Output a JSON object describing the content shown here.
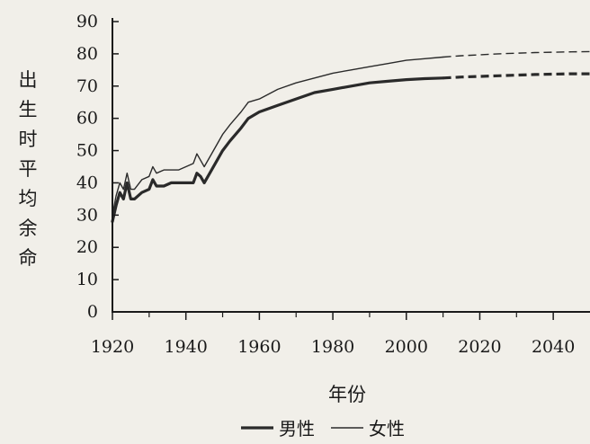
{
  "chart_data": {
    "type": "line",
    "xlabel": "年份",
    "ylabel": "出生时平均余命",
    "xlim": [
      1920,
      2050
    ],
    "ylim": [
      0,
      90
    ],
    "x_ticks": [
      1920,
      1940,
      1960,
      1980,
      2000,
      2020,
      2040
    ],
    "y_ticks": [
      0,
      10,
      20,
      30,
      40,
      50,
      60,
      70,
      80,
      90
    ],
    "grid": false,
    "legend_position": "bottom-center",
    "observed_until": 2010,
    "projected_style": "dashed",
    "series": [
      {
        "name": "男性",
        "color": "#2a2a2a",
        "line_weight": "bold",
        "x": [
          1920,
          1921,
          1922,
          1923,
          1924,
          1925,
          1926,
          1928,
          1930,
          1931,
          1932,
          1934,
          1936,
          1938,
          1940,
          1942,
          1943,
          1944,
          1945,
          1947,
          1950,
          1952,
          1955,
          1957,
          1960,
          1965,
          1970,
          1975,
          1980,
          1985,
          1990,
          1995,
          2000,
          2005,
          2010,
          2015,
          2020,
          2025,
          2030,
          2035,
          2040,
          2045,
          2050
        ],
        "values": [
          28,
          33,
          37,
          35,
          40,
          35,
          35,
          37,
          38,
          41,
          39,
          39,
          40,
          40,
          40,
          40,
          43,
          42,
          40,
          44,
          50,
          53,
          57,
          60,
          62,
          64,
          66,
          68,
          69,
          70,
          71,
          71.5,
          72,
          72.3,
          72.5,
          72.8,
          73.0,
          73.2,
          73.4,
          73.6,
          73.7,
          73.8,
          73.8
        ]
      },
      {
        "name": "女性",
        "color": "#2a2a2a",
        "line_weight": "thin",
        "x": [
          1920,
          1921,
          1922,
          1923,
          1924,
          1925,
          1926,
          1928,
          1930,
          1931,
          1932,
          1934,
          1936,
          1938,
          1940,
          1942,
          1943,
          1944,
          1945,
          1947,
          1950,
          1952,
          1955,
          1957,
          1960,
          1965,
          1970,
          1975,
          1980,
          1985,
          1990,
          1995,
          2000,
          2005,
          2010,
          2015,
          2020,
          2025,
          2030,
          2035,
          2040,
          2045,
          2050
        ],
        "values": [
          30,
          36,
          40,
          38,
          43,
          38,
          38,
          41,
          42,
          45,
          43,
          44,
          44,
          44,
          45,
          46,
          49,
          47,
          45,
          49,
          55,
          58,
          62,
          65,
          66,
          69,
          71,
          72.5,
          74,
          75,
          76,
          77,
          78,
          78.5,
          79,
          79.4,
          79.7,
          80.0,
          80.2,
          80.4,
          80.5,
          80.6,
          80.7
        ]
      }
    ]
  }
}
